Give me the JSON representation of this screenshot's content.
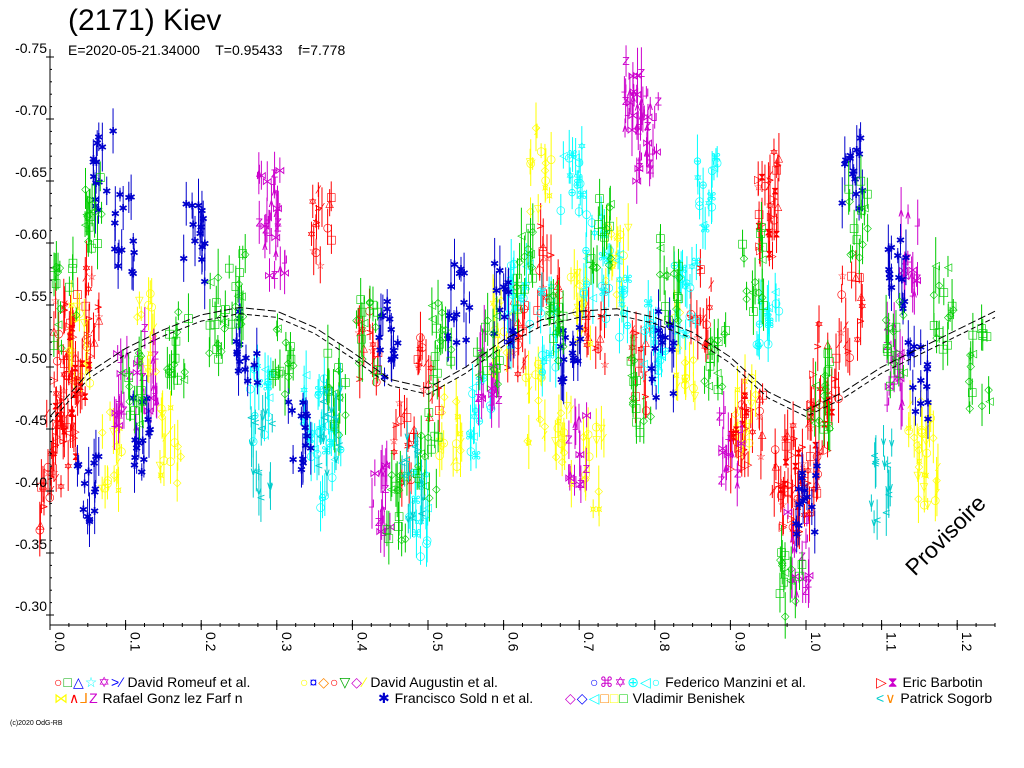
{
  "chart_data": {
    "type": "scatter",
    "title": "(2171) Kiev",
    "subtitle": "E=2020-05-21.34000    T=0.95433    f=7.778",
    "watermark": "Provisoire",
    "xlim": [
      0.0,
      1.25
    ],
    "ylim": [
      -0.75,
      -0.3
    ],
    "y_inverted": true,
    "xticks": [
      "0.0",
      "0.1",
      "0.2",
      "0.3",
      "0.4",
      "0.5",
      "0.6",
      "0.7",
      "0.8",
      "0.9",
      "1.0",
      "1.1",
      "1.2"
    ],
    "yticks": [
      "-0.75",
      "-0.70",
      "-0.65",
      "-0.60",
      "-0.55",
      "-0.50",
      "-0.45",
      "-0.40",
      "-0.35",
      "-0.30"
    ],
    "grid": false,
    "fit_curve": {
      "phase": [
        0.0,
        0.05,
        0.1,
        0.15,
        0.2,
        0.25,
        0.3,
        0.35,
        0.4,
        0.45,
        0.5,
        0.55,
        0.6,
        0.65,
        0.7,
        0.75,
        0.8,
        0.85,
        0.9,
        0.95,
        1.0,
        1.05,
        1.1,
        1.15,
        1.2,
        1.25
      ],
      "mag": [
        -0.46,
        -0.495,
        -0.515,
        -0.53,
        -0.542,
        -0.548,
        -0.545,
        -0.532,
        -0.512,
        -0.49,
        -0.483,
        -0.5,
        -0.522,
        -0.538,
        -0.545,
        -0.547,
        -0.54,
        -0.528,
        -0.508,
        -0.48,
        -0.465,
        -0.48,
        -0.5,
        -0.515,
        -0.53,
        -0.545
      ]
    },
    "series": [
      {
        "name": "David Romeuf et al.",
        "symbols": "○□△☆✡>⁄",
        "color": "#ff0000",
        "points": [
          [
            0.0,
            -0.4
          ],
          [
            0.01,
            -0.45
          ],
          [
            0.02,
            -0.52
          ],
          [
            0.03,
            -0.48
          ],
          [
            0.05,
            -0.55
          ],
          [
            0.36,
            -0.61
          ],
          [
            0.42,
            -0.52
          ],
          [
            0.47,
            -0.44
          ],
          [
            0.5,
            -0.49
          ],
          [
            0.62,
            -0.52
          ],
          [
            0.66,
            -0.58
          ],
          [
            0.72,
            -0.53
          ],
          [
            0.78,
            -0.5
          ],
          [
            0.86,
            -0.55
          ],
          [
            0.93,
            -0.45
          ],
          [
            0.95,
            -0.64
          ],
          [
            0.97,
            -0.42
          ],
          [
            0.99,
            -0.38
          ],
          [
            1.01,
            -0.43
          ],
          [
            1.03,
            -0.5
          ],
          [
            1.06,
            -0.54
          ]
        ]
      },
      {
        "name": "David Augustin et al.",
        "symbols": "○¤◇○▽◇⁄",
        "color": "#ffff00",
        "points": [
          [
            0.04,
            -0.52
          ],
          [
            0.08,
            -0.43
          ],
          [
            0.13,
            -0.53
          ],
          [
            0.16,
            -0.44
          ],
          [
            0.53,
            -0.45
          ],
          [
            0.6,
            -0.52
          ],
          [
            0.64,
            -0.47
          ],
          [
            0.65,
            -0.66
          ],
          [
            0.68,
            -0.44
          ],
          [
            0.7,
            -0.55
          ],
          [
            0.72,
            -0.42
          ],
          [
            0.75,
            -0.58
          ],
          [
            0.84,
            -0.51
          ],
          [
            0.92,
            -0.46
          ],
          [
            1.15,
            -0.44
          ],
          [
            1.16,
            -0.42
          ]
        ]
      },
      {
        "name": "Federico Manzini et al.",
        "symbols": "○⌘✡⊕◁○",
        "color": "#00ffff",
        "points": [
          [
            0.28,
            -0.47
          ],
          [
            0.35,
            -0.46
          ],
          [
            0.37,
            -0.42
          ],
          [
            0.49,
            -0.38
          ],
          [
            0.57,
            -0.46
          ],
          [
            0.62,
            -0.55
          ],
          [
            0.66,
            -0.53
          ],
          [
            0.69,
            -0.66
          ],
          [
            0.72,
            -0.59
          ],
          [
            0.75,
            -0.56
          ],
          [
            0.8,
            -0.53
          ],
          [
            0.84,
            -0.56
          ],
          [
            0.87,
            -0.64
          ],
          [
            0.95,
            -0.55
          ]
        ]
      },
      {
        "name": "Eric Barbotin",
        "symbols": "▷⧗",
        "color": "#ff0000",
        "points": [
          [
            0.02,
            -0.46
          ],
          [
            0.04,
            -0.51
          ],
          [
            0.91,
            -0.45
          ],
          [
            0.95,
            -0.62
          ],
          [
            0.98,
            -0.4
          ],
          [
            1.02,
            -0.46
          ]
        ]
      },
      {
        "name": "Rafael Gonz lez Farf n",
        "symbols": "⋈∧⅃Z",
        "color": "#cc00cc",
        "points": [
          [
            0.1,
            -0.48
          ],
          [
            0.13,
            -0.5
          ],
          [
            0.29,
            -0.63
          ],
          [
            0.3,
            -0.6
          ],
          [
            0.44,
            -0.4
          ],
          [
            0.58,
            -0.5
          ],
          [
            0.7,
            -0.43
          ],
          [
            0.77,
            -0.72
          ],
          [
            0.78,
            -0.69
          ],
          [
            0.79,
            -0.68
          ],
          [
            0.9,
            -0.44
          ],
          [
            0.99,
            -0.35
          ],
          [
            1.12,
            -0.5
          ],
          [
            1.14,
            -0.59
          ]
        ]
      },
      {
        "name": "Francisco Sold n et al.",
        "symbols": "✱",
        "color": "#0000cc",
        "points": [
          [
            0.05,
            -0.4
          ],
          [
            0.07,
            -0.66
          ],
          [
            0.1,
            -0.61
          ],
          [
            0.12,
            -0.44
          ],
          [
            0.19,
            -0.6
          ],
          [
            0.26,
            -0.52
          ],
          [
            0.33,
            -0.44
          ],
          [
            0.45,
            -0.52
          ],
          [
            0.54,
            -0.55
          ],
          [
            0.6,
            -0.55
          ],
          [
            0.69,
            -0.5
          ],
          [
            0.81,
            -0.51
          ],
          [
            1.0,
            -0.4
          ],
          [
            1.06,
            -0.65
          ],
          [
            1.12,
            -0.58
          ],
          [
            1.15,
            -0.49
          ]
        ]
      },
      {
        "name": "Vladimir Benishek",
        "symbols": "◇◇◁□□□",
        "color": "#00cc00",
        "points": [
          [
            0.02,
            -0.55
          ],
          [
            0.06,
            -0.62
          ],
          [
            0.11,
            -0.48
          ],
          [
            0.17,
            -0.52
          ],
          [
            0.22,
            -0.54
          ],
          [
            0.25,
            -0.57
          ],
          [
            0.31,
            -0.5
          ],
          [
            0.38,
            -0.48
          ],
          [
            0.42,
            -0.53
          ],
          [
            0.46,
            -0.38
          ],
          [
            0.5,
            -0.43
          ],
          [
            0.52,
            -0.52
          ],
          [
            0.58,
            -0.51
          ],
          [
            0.63,
            -0.58
          ],
          [
            0.67,
            -0.54
          ],
          [
            0.73,
            -0.61
          ],
          [
            0.78,
            -0.48
          ],
          [
            0.82,
            -0.57
          ],
          [
            0.88,
            -0.5
          ],
          [
            0.93,
            -0.58
          ],
          [
            0.98,
            -0.33
          ],
          [
            1.02,
            -0.48
          ],
          [
            1.07,
            -0.62
          ],
          [
            1.12,
            -0.52
          ],
          [
            1.18,
            -0.55
          ],
          [
            1.23,
            -0.5
          ]
        ]
      },
      {
        "name": "Patrick Sogorb",
        "symbols": "<∨",
        "color": "#00cccc",
        "points": [
          [
            0.28,
            -0.43
          ],
          [
            0.37,
            -0.45
          ],
          [
            0.48,
            -0.41
          ],
          [
            1.1,
            -0.41
          ]
        ]
      }
    ]
  },
  "legend": [
    {
      "symbols": "○□△☆✡>⁄",
      "label": "David Romeuf et al.",
      "colors": [
        "#ff0000",
        "#00aa00",
        "#0000ff",
        "#00ffff",
        "#cc00cc",
        "#0000ff",
        "#0000ff"
      ]
    },
    {
      "symbols": "○¤◇○▽◇⁄",
      "label": "David Augustin et al.",
      "colors": [
        "#ffff00",
        "#0000ff",
        "#ff8800",
        "#ff0000",
        "#00aa00",
        "#cc00cc",
        "#ffff00"
      ]
    },
    {
      "symbols": "○⌘✡⊕◁○",
      "label": "Federico Manzini et al.",
      "colors": [
        "#0000ff",
        "#cc00cc",
        "#cc00cc",
        "#00ffff",
        "#00ffff",
        "#00ffff"
      ]
    },
    {
      "symbols": "▷⧗",
      "label": "Eric Barbotin",
      "colors": [
        "#ff0000",
        "#cc00cc"
      ]
    },
    {
      "symbols": "⋈∧⅃Z",
      "label": "Rafael Gonz lez Farf n",
      "colors": [
        "#ffff00",
        "#ff0000",
        "#ff8800",
        "#cc00cc"
      ]
    },
    {
      "symbols": "✱",
      "label": "Francisco Sold n et al.",
      "colors": [
        "#0000cc"
      ]
    },
    {
      "symbols": "◇◇◁□□□",
      "label": "Vladimir Benishek",
      "colors": [
        "#cc00cc",
        "#0000ff",
        "#00ffff",
        "#ff8800",
        "#ffff00",
        "#00cc00"
      ]
    },
    {
      "symbols": "<∨",
      "label": "Patrick Sogorb",
      "colors": [
        "#00cccc",
        "#ff8800"
      ]
    }
  ],
  "copyright": "(c)2020 OdG-RB"
}
